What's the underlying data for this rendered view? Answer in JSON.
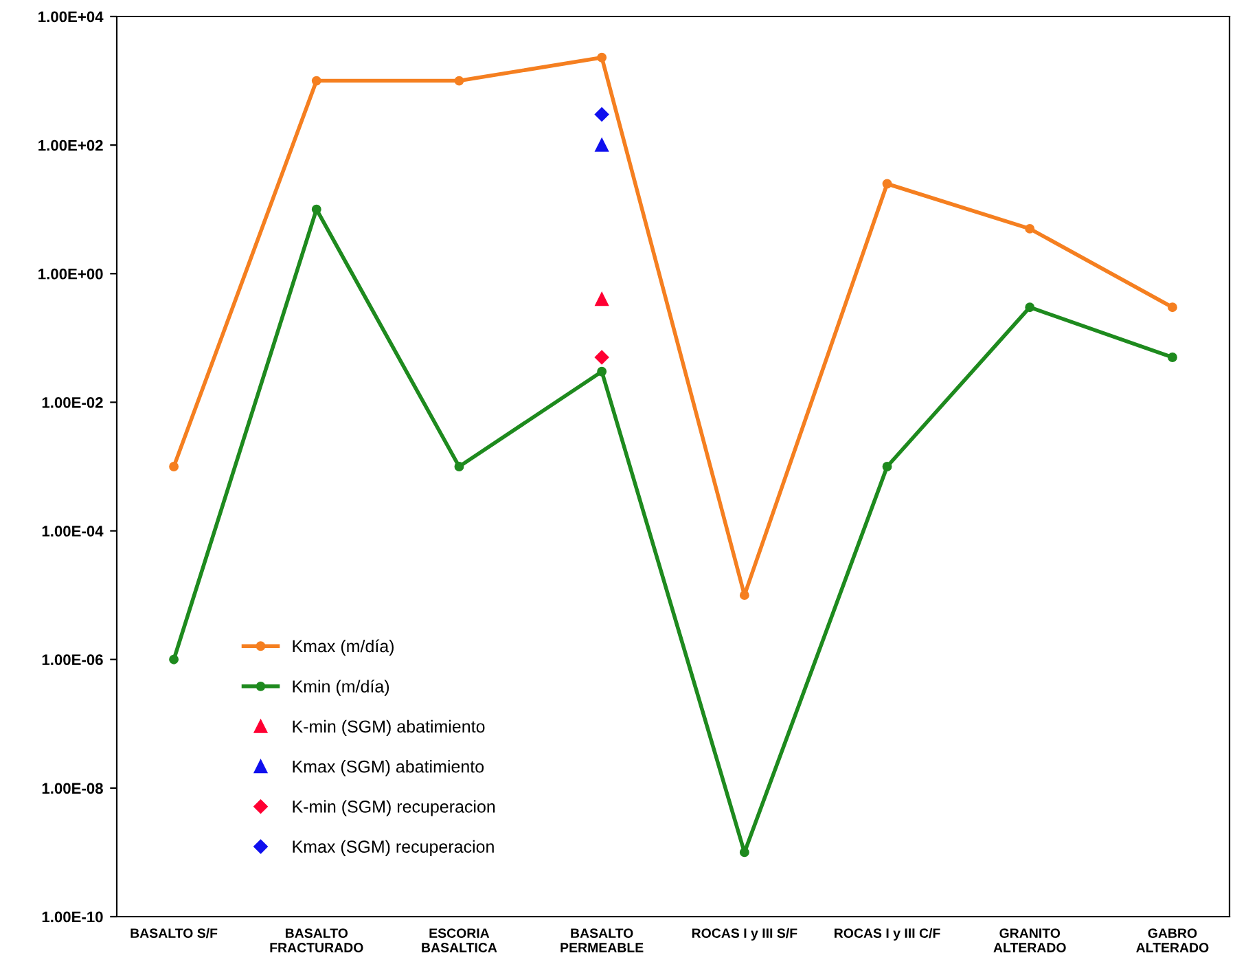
{
  "chart_data": {
    "type": "line",
    "categories": [
      "BASALTO S/F",
      "BASALTO\nFRACTURADO",
      "ESCORIA\nBASALTICA",
      "BASALTO\nPERMEABLE",
      "ROCAS I y III S/F",
      "ROCAS I y III C/F",
      "GRANITO\nALTERADO",
      "GABRO\nALTERADO"
    ],
    "series": [
      {
        "name": "Kmax (m/día)",
        "color": "#f57f20",
        "marker": "circle",
        "values": [
          0.001,
          1000,
          1000,
          2300,
          1e-05,
          25,
          5,
          0.3
        ]
      },
      {
        "name": "Kmin (m/día)",
        "color": "#1e8a1e",
        "marker": "circle",
        "values": [
          1e-06,
          10,
          0.001,
          0.03,
          1e-09,
          0.001,
          0.3,
          0.05
        ]
      },
      {
        "name": "K-min (SGM) abatimiento",
        "type": "scatter",
        "color": "#ff0033",
        "marker": "triangle",
        "x": [
          "BASALTO\nPERMEABLE"
        ],
        "values": [
          0.4
        ]
      },
      {
        "name": "Kmax (SGM) abatimiento",
        "type": "scatter",
        "color": "#1010ee",
        "marker": "triangle",
        "x": [
          "BASALTO\nPERMEABLE"
        ],
        "values": [
          100
        ]
      },
      {
        "name": "K-min (SGM) recuperacion",
        "type": "scatter",
        "color": "#ff0033",
        "marker": "diamond",
        "x": [
          "BASALTO\nPERMEABLE"
        ],
        "values": [
          0.05
        ]
      },
      {
        "name": "Kmax (SGM) recuperacion",
        "type": "scatter",
        "color": "#1010ee",
        "marker": "diamond",
        "x": [
          "BASALTO\nPERMEABLE"
        ],
        "values": [
          300
        ]
      }
    ],
    "log": "y",
    "ylim": [
      1e-10,
      10000
    ],
    "yticks": [
      {
        "value": 1e-10,
        "label": "1.00E-10"
      },
      {
        "value": 1e-08,
        "label": "1.00E-08"
      },
      {
        "value": 1e-06,
        "label": "1.00E-06"
      },
      {
        "value": 0.0001,
        "label": "1.00E-04"
      },
      {
        "value": 0.01,
        "label": "1.00E-02"
      },
      {
        "value": 1,
        "label": "1.00E+00"
      },
      {
        "value": 100,
        "label": "1.00E+02"
      },
      {
        "value": 10000,
        "label": "1.00E+04"
      }
    ],
    "grid": false,
    "legend": "bottom left"
  }
}
